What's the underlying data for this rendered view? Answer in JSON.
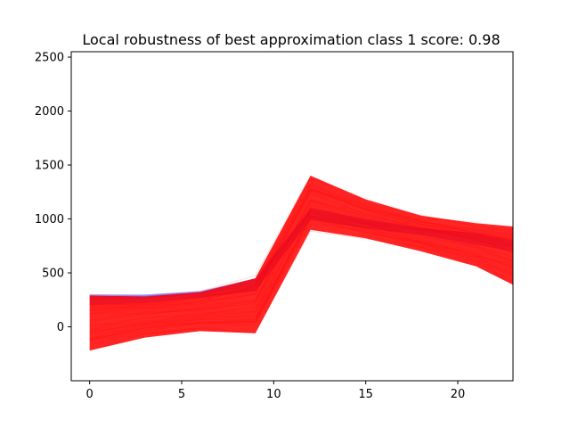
{
  "chart_data": {
    "type": "line",
    "title": "Local robustness of best approximation class 1 score: 0.98",
    "xlabel": "",
    "ylabel": "",
    "xlim": [
      -1,
      23
    ],
    "ylim": [
      -500,
      2550
    ],
    "x_ticks": [
      0,
      5,
      10,
      15,
      20
    ],
    "y_ticks": [
      0,
      500,
      1000,
      1500,
      2000,
      2500
    ],
    "grid": false,
    "legend": "none",
    "x": [
      0,
      3,
      6,
      9,
      12,
      15,
      18,
      21,
      23
    ],
    "series": [
      {
        "color": "#0000ff",
        "opacity": 0.08,
        "values": [
          245,
          260,
          300,
          380,
          1050,
          960,
          890,
          820,
          760
        ],
        "band_upper": [
          300,
          300,
          330,
          450,
          1100,
          1000,
          920,
          870,
          800
        ],
        "band_lower": [
          200,
          220,
          270,
          330,
          990,
          910,
          850,
          760,
          700
        ]
      },
      {
        "color": "#ff0000",
        "opacity": 0.12,
        "values": [
          40,
          80,
          150,
          200,
          1150,
          1000,
          860,
          760,
          640
        ],
        "band_upper": [
          290,
          280,
          320,
          450,
          1400,
          1180,
          1030,
          960,
          930
        ],
        "band_lower": [
          -220,
          -100,
          -40,
          -60,
          900,
          820,
          700,
          560,
          390
        ]
      }
    ]
  }
}
